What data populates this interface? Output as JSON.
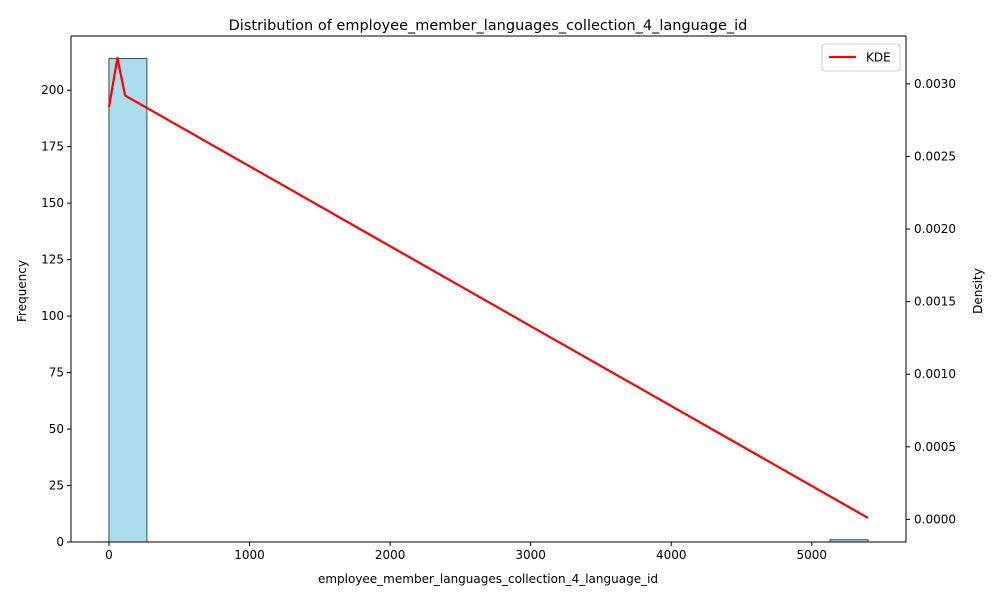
{
  "chart_data": {
    "type": "histogram",
    "title": "Distribution of employee_member_languages_collection_4_language_id",
    "xlabel": "employee_member_languages_collection_4_language_id",
    "ylabel": "Frequency",
    "y2label": "Density",
    "xlim": [
      -270,
      5670
    ],
    "ylim": [
      0,
      224
    ],
    "y2lim": [
      -0.000156,
      0.00333
    ],
    "xticks": [
      0,
      1000,
      2000,
      3000,
      4000,
      5000
    ],
    "yticks": [
      0,
      25,
      50,
      75,
      100,
      125,
      150,
      175,
      200
    ],
    "y2ticks": [
      0.0,
      0.0005,
      0.001,
      0.0015,
      0.002,
      0.0025,
      0.003
    ],
    "y2tick_labels": [
      "0.0000",
      "0.0005",
      "0.0010",
      "0.0015",
      "0.0020",
      "0.0025",
      "0.0030"
    ],
    "bins": [
      {
        "x0": 0,
        "x1": 270,
        "count": 214
      },
      {
        "x0": 5130,
        "x1": 5400,
        "count": 1
      }
    ],
    "series": [
      {
        "name": "KDE",
        "color": "#ff0000",
        "x": [
          0,
          60,
          115,
          5400
        ],
        "y": [
          0.00284,
          0.00318,
          0.00292,
          1e-05
        ]
      }
    ],
    "bar_color": "#a8dbec",
    "bar_edge_color": "#2f4f4f",
    "legend_position": "top-right",
    "grid": false
  }
}
